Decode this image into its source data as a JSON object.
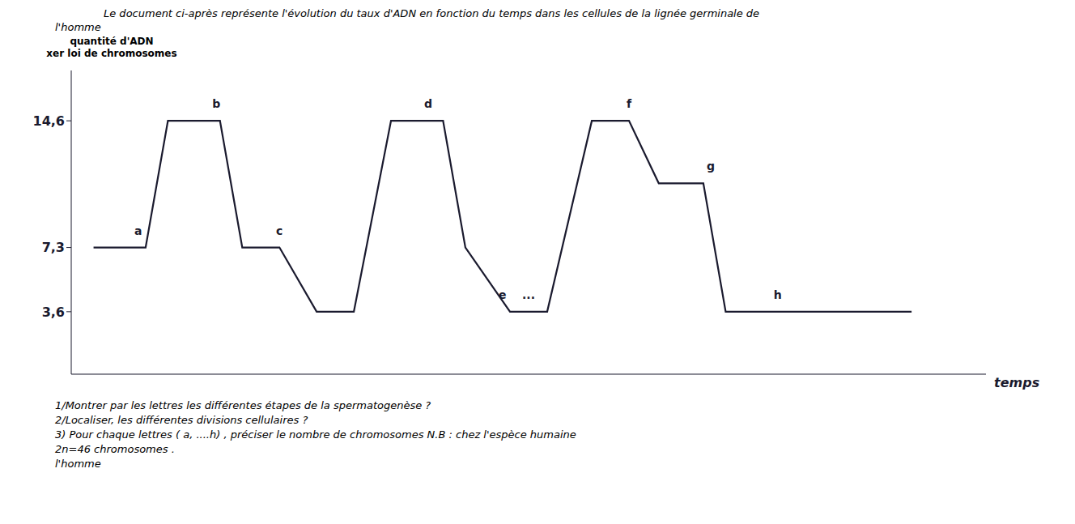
{
  "chart_data": {
    "type": "line",
    "title": "Le document ci-après représente l'évolution du taux d'ADN en fonction du temps dans les cellules de la lignée germinale de",
    "subtitle": "l'homme",
    "xlabel": "temps",
    "ylabel": [
      "quantité d'ADN",
      "xer loi de chromosomes"
    ],
    "x": [
      0,
      0.7,
      1.0,
      1.7,
      2.0,
      2.5,
      3.0,
      3.5,
      4.0,
      4.7,
      5.0,
      5.6,
      6.1,
      6.7,
      7.2,
      7.6,
      8.2,
      8.5,
      9.5,
      11.0
    ],
    "series": [
      {
        "color": "#1a1a2e",
        "values": [
          7.3,
          7.3,
          14.6,
          14.6,
          7.3,
          7.3,
          3.6,
          3.6,
          14.6,
          14.6,
          7.3,
          3.6,
          3.6,
          14.6,
          14.6,
          11.0,
          11.0,
          3.6,
          3.6,
          3.6
        ]
      }
    ],
    "xlim": [
      -0.3,
      12.0
    ],
    "xticks": [],
    "ylim": [
      0,
      17.5
    ],
    "yticks": [
      {
        "value": 3.6,
        "label": "3,6"
      },
      {
        "value": 7.3,
        "label": "7,3"
      },
      {
        "value": 14.6,
        "label": "14,6"
      }
    ],
    "tick_labels": "y",
    "grid": false,
    "annotations": [
      {
        "text": "a",
        "x": 0.6,
        "y": 7.6
      },
      {
        "text": "b",
        "x": 1.65,
        "y": 14.9
      },
      {
        "text": "c",
        "x": 2.5,
        "y": 7.6
      },
      {
        "text": "d",
        "x": 4.5,
        "y": 14.9
      },
      {
        "text": "e",
        "x": 5.5,
        "y": 3.9
      },
      {
        "text": "f",
        "x": 7.2,
        "y": 14.9
      },
      {
        "text": "g",
        "x": 8.3,
        "y": 11.3
      },
      {
        "text": "h",
        "x": 9.2,
        "y": 3.9
      },
      {
        "text": "...",
        "x": 5.85,
        "y": 3.9
      }
    ],
    "footnotes": [
      "1/Montrer par les lettres  les différentes étapes de la spermatogenèse ?",
      "2/Localiser, les différentes divisions cellulaires ?",
      "3) Pour chaque lettres ( a, ....h) , préciser le nombre de chromosomes  N.B : chez l'espèce humaine",
      "2n=46 chromosomes .",
      "l'homme"
    ]
  }
}
